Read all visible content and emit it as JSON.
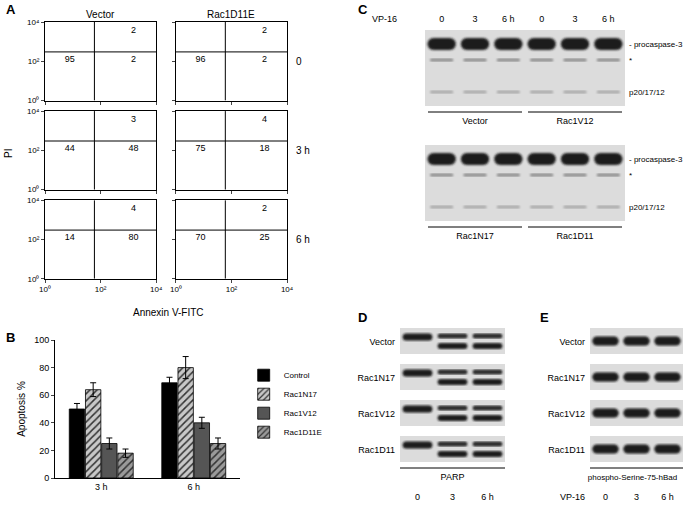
{
  "panel_labels": [
    "A",
    "B",
    "C",
    "D",
    "E"
  ],
  "chart_data": [
    {
      "type": "scatter",
      "x_label": "Annexin V-FITC",
      "y_label": "PI",
      "columns": [
        "Vector",
        "Rac1D11E"
      ],
      "rows": [
        "0",
        "3 h",
        "6 h"
      ],
      "log": true,
      "xlim": [
        1,
        10000
      ],
      "ylim": [
        1,
        10000
      ],
      "xticks": [
        {
          "value": 1,
          "label": "10⁰"
        },
        {
          "value": 100,
          "label": "10²"
        },
        {
          "value": 10000,
          "label": "10⁴"
        }
      ],
      "yticks": [
        {
          "value": 1,
          "label": "10⁰"
        },
        {
          "value": 100,
          "label": "10²"
        },
        {
          "value": 10000,
          "label": "10⁴"
        }
      ],
      "gate": {
        "x": 60,
        "y": 300
      },
      "quadrants": [
        [
          {
            "lower_left": 95,
            "lower_right": 2,
            "upper_right": 2
          },
          {
            "lower_left": 44,
            "lower_right": 48,
            "upper_right": 3
          },
          {
            "lower_left": 14,
            "lower_right": 80,
            "upper_right": 4
          }
        ],
        [
          {
            "lower_left": 96,
            "lower_right": 2,
            "upper_right": 2
          },
          {
            "lower_left": 75,
            "lower_right": 18,
            "upper_right": 4
          },
          {
            "lower_left": 70,
            "lower_right": 25,
            "upper_right": 2
          }
        ]
      ]
    },
    {
      "type": "bar",
      "categories": [
        "3 h",
        "6 h"
      ],
      "y_label": "Apoptosis %",
      "ylim": [
        0,
        100
      ],
      "yticks": [
        0,
        20,
        40,
        60,
        80,
        100
      ],
      "legend": "right",
      "series": [
        {
          "name": "Control",
          "color": "#000000",
          "values": [
            50,
            69
          ],
          "errors": [
            4,
            4
          ]
        },
        {
          "name": "Rac1N17",
          "color": "#c8c8c8",
          "marker": "hatch",
          "values": [
            64,
            80
          ],
          "errors": [
            5,
            8
          ]
        },
        {
          "name": "Rac1V12",
          "color": "#555555",
          "values": [
            25,
            40
          ],
          "errors": [
            4,
            4
          ]
        },
        {
          "name": "Rac1D11E",
          "color": "#9a9a9a",
          "marker": "hatch",
          "values": [
            18,
            25
          ],
          "errors": [
            3,
            4
          ]
        }
      ]
    }
  ],
  "blots": {
    "C": {
      "treatment": "VP-16",
      "lanes": [
        "0",
        "3",
        "6 h"
      ],
      "band_labels": [
        "- procaspase-3",
        "*",
        "p20/17/12"
      ],
      "rows": [
        [
          "Vector",
          "Rac1V12"
        ],
        [
          "Rac1N17",
          "Rac1D11"
        ]
      ]
    },
    "D": {
      "rows": [
        "Vector",
        "Rac1N17",
        "Rac1V12",
        "Rac1D11"
      ],
      "protein": "PARP",
      "lanes": [
        "0",
        "3",
        "6 h"
      ]
    },
    "E": {
      "rows": [
        "Vector",
        "Rac1N17",
        "Rac1V12",
        "Rac1D11"
      ],
      "protein": "phospho-Serine-75-hBad",
      "treatment": "VP-16",
      "lanes": [
        "0",
        "3",
        "6 h"
      ]
    }
  }
}
